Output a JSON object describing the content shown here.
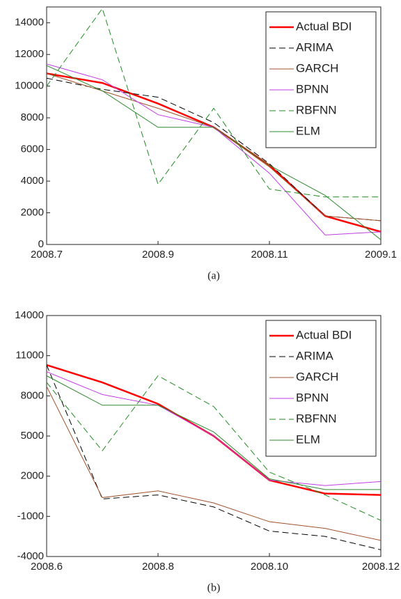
{
  "chart_data": [
    {
      "type": "line",
      "caption": "(a)",
      "categories": [
        "2008.7",
        null,
        "2008.9",
        null,
        "2008.11",
        null,
        "2009.1"
      ],
      "ylim": [
        0,
        15000
      ],
      "yticks": [
        0,
        2000,
        4000,
        6000,
        8000,
        10000,
        12000,
        14000
      ],
      "legend": "upper right",
      "grid": false,
      "series": [
        {
          "name": "Actual BDI",
          "color": "#ff0000",
          "dashed": false,
          "linewidth": 2.5,
          "values": [
            10800,
            10200,
            8900,
            7400,
            5000,
            1800,
            800
          ]
        },
        {
          "name": "ARIMA",
          "color": "#000000",
          "dashed": true,
          "linewidth": 1,
          "values": [
            10500,
            9800,
            9300,
            7700,
            5100,
            1800,
            1500
          ]
        },
        {
          "name": "GARCH",
          "color": "#a0522d",
          "dashed": false,
          "linewidth": 1,
          "values": [
            10800,
            9700,
            8600,
            7400,
            4900,
            1800,
            1500
          ]
        },
        {
          "name": "BPNN",
          "color": "#c03ce6",
          "dashed": false,
          "linewidth": 1,
          "values": [
            11400,
            10400,
            8200,
            7400,
            4500,
            600,
            800
          ]
        },
        {
          "name": "RBFNN",
          "color": "#1e8c1e",
          "dashed": true,
          "linewidth": 1,
          "values": [
            10000,
            14900,
            3800,
            8600,
            3500,
            3000,
            3000
          ]
        },
        {
          "name": "ELM",
          "color": "#2e8b2e",
          "dashed": false,
          "linewidth": 1,
          "values": [
            11300,
            9700,
            7400,
            7400,
            5000,
            3100,
            300
          ]
        }
      ]
    },
    {
      "type": "line",
      "caption": "(b)",
      "categories": [
        "2008.6",
        null,
        "2008.8",
        null,
        "2008.10",
        null,
        "2008.12"
      ],
      "ylim": [
        -4000,
        14000
      ],
      "yticks": [
        -4000,
        -1000,
        2000,
        5000,
        8000,
        11000,
        14000
      ],
      "legend": "upper right",
      "grid": false,
      "series": [
        {
          "name": "Actual BDI",
          "color": "#ff0000",
          "dashed": false,
          "linewidth": 2.5,
          "values": [
            10300,
            9000,
            7400,
            5000,
            1700,
            700,
            600
          ]
        },
        {
          "name": "ARIMA",
          "color": "#000000",
          "dashed": true,
          "linewidth": 1,
          "values": [
            10300,
            300,
            600,
            -300,
            -2100,
            -2500,
            -3500
          ]
        },
        {
          "name": "GARCH",
          "color": "#a0522d",
          "dashed": false,
          "linewidth": 1,
          "values": [
            8700,
            400,
            900,
            0,
            -1400,
            -1900,
            -2800
          ]
        },
        {
          "name": "BPNN",
          "color": "#c03ce6",
          "dashed": false,
          "linewidth": 1,
          "values": [
            9800,
            8100,
            7300,
            5000,
            1700,
            1300,
            1600
          ]
        },
        {
          "name": "RBFNN",
          "color": "#1e8c1e",
          "dashed": true,
          "linewidth": 1,
          "values": [
            9000,
            3900,
            9500,
            7200,
            2300,
            600,
            -1300
          ]
        },
        {
          "name": "ELM",
          "color": "#2e8b2e",
          "dashed": false,
          "linewidth": 1,
          "values": [
            9500,
            7300,
            7300,
            5300,
            1800,
            1000,
            1000
          ]
        }
      ]
    }
  ]
}
